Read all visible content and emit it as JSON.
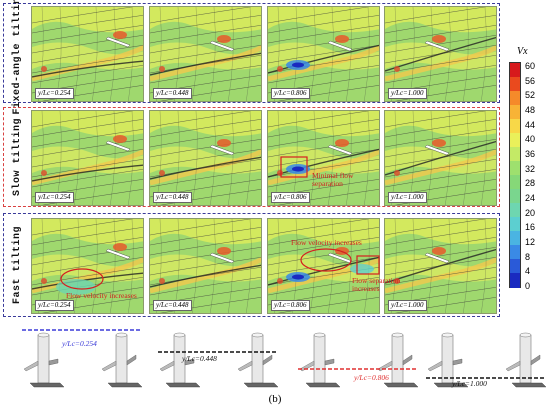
{
  "rows": [
    {
      "id": "fixed",
      "label": "Fixed-angle tilting",
      "border_color": "#3a3a9a"
    },
    {
      "id": "slow",
      "label": "Slow tilting",
      "border_color": "#d94040"
    },
    {
      "id": "fast",
      "label": "Fast tilting",
      "border_color": "#3a3a9a"
    }
  ],
  "positions": [
    "y/Lc=0.254",
    "y/Lc=0.448",
    "y/Lc=0.806",
    "y/Lc=1.000"
  ],
  "annotations": {
    "minimal_flow_separation": "Minimal flow separation",
    "flow_velocity_increases_fast2": "Flow velocity increases",
    "flow_velocity_increases_fast1": "Flow velocity increases",
    "flow_separation_increases": "Flow separation increases"
  },
  "colorbar": {
    "title": "Vx",
    "ticks": [
      "60",
      "56",
      "52",
      "48",
      "44",
      "40",
      "36",
      "32",
      "28",
      "24",
      "20",
      "16",
      "12",
      "8",
      "4",
      "0"
    ],
    "colors": [
      "#d7191c",
      "#ea4a1e",
      "#f58a2a",
      "#f8b336",
      "#f8d848",
      "#eaf05a",
      "#c4ea66",
      "#9ee06e",
      "#86d878",
      "#7ad68e",
      "#6ed6b0",
      "#5ccfd0",
      "#4ab4e2",
      "#3a8ae6",
      "#2a5ad8",
      "#1a2ac0"
    ]
  },
  "turbine_labels": [
    "y/Lc=0.254",
    "y/Lc=0.448",
    "y/Lc=0.806",
    "y/Lc=1.000"
  ],
  "turbine_line_colors": [
    "#3a3ad8",
    "#111111",
    "#e03030",
    "#111111"
  ],
  "caption": "(b)"
}
